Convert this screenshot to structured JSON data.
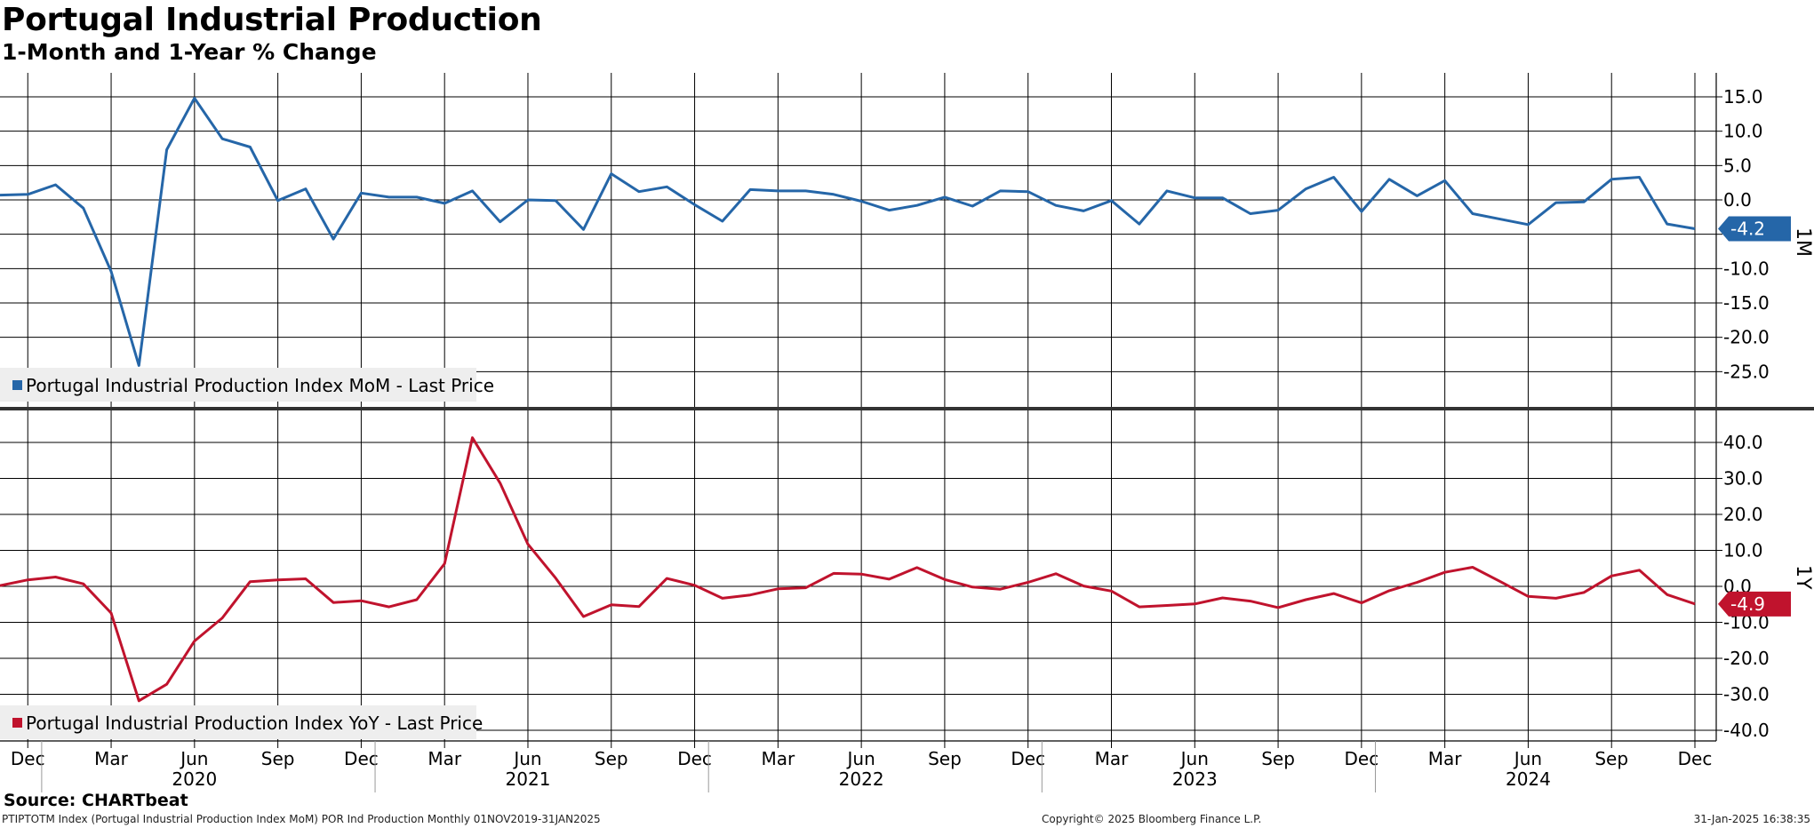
{
  "header": {
    "title": "Portugal Industrial Production",
    "subtitle": "1-Month and 1-Year % Change"
  },
  "footer": {
    "source": "Source: CHARTbeat",
    "ticker_info": "PTIPTOTM Index (Portugal Industrial Production Index MoM) POR Ind Production  Monthly 01NOV2019-31JAN2025",
    "copyright": "Copyright© 2025 Bloomberg Finance L.P.",
    "timestamp": "31-Jan-2025 16:38:35"
  },
  "colors": {
    "mom": "#2566a8",
    "yoy": "#c0132d",
    "grid": "#000000",
    "legend_bg": "#eeeeee"
  },
  "chart_data": [
    {
      "type": "line",
      "panel_label": "1M",
      "legend": "Portugal Industrial Production Index MoM - Last Price",
      "last_value_label": "-4.2",
      "ylim": [
        -30,
        19
      ],
      "y_ticks": [
        15,
        10,
        5,
        0,
        -5,
        -10,
        -15,
        -20,
        -25
      ],
      "y_tick_labels": [
        "15.0",
        "10.0",
        "5.0",
        "0.0",
        "-5.0",
        "-10.0",
        "-15.0",
        "-20.0",
        "-25.0"
      ],
      "grid": true,
      "series": [
        {
          "name": "Portugal Industrial Production Index MoM - Last Price",
          "x": [
            "2019-11",
            "2019-12",
            "2020-01",
            "2020-02",
            "2020-03",
            "2020-04",
            "2020-05",
            "2020-06",
            "2020-07",
            "2020-08",
            "2020-09",
            "2020-10",
            "2020-11",
            "2020-12",
            "2021-01",
            "2021-02",
            "2021-03",
            "2021-04",
            "2021-05",
            "2021-06",
            "2021-07",
            "2021-08",
            "2021-09",
            "2021-10",
            "2021-11",
            "2021-12",
            "2022-01",
            "2022-02",
            "2022-03",
            "2022-04",
            "2022-05",
            "2022-06",
            "2022-07",
            "2022-08",
            "2022-09",
            "2022-10",
            "2022-11",
            "2022-12",
            "2023-01",
            "2023-02",
            "2023-03",
            "2023-04",
            "2023-05",
            "2023-06",
            "2023-07",
            "2023-08",
            "2023-09",
            "2023-10",
            "2023-11",
            "2023-12",
            "2024-01",
            "2024-02",
            "2024-03",
            "2024-04",
            "2024-05",
            "2024-06",
            "2024-07",
            "2024-08",
            "2024-09",
            "2024-10",
            "2024-11",
            "2024-12"
          ],
          "values": [
            0.7,
            0.8,
            2.2,
            -1.2,
            -10.4,
            -24.1,
            7.3,
            14.8,
            8.9,
            7.7,
            -0.1,
            1.6,
            -5.7,
            1.0,
            0.4,
            0.4,
            -0.5,
            1.3,
            -3.2,
            0.0,
            -0.1,
            -4.3,
            3.8,
            1.2,
            1.9,
            -0.7,
            -3.1,
            1.5,
            1.3,
            1.3,
            0.8,
            -0.2,
            -1.5,
            -0.8,
            0.4,
            -0.9,
            1.3,
            1.2,
            -0.8,
            -1.6,
            -0.1,
            -3.5,
            1.3,
            0.3,
            0.3,
            -2.0,
            -1.5,
            1.6,
            3.3,
            -1.7,
            3.0,
            0.6,
            2.8,
            -2.0,
            -2.8,
            -3.6,
            -0.4,
            -0.3,
            3.0,
            3.3,
            -3.5,
            -4.2
          ]
        }
      ]
    },
    {
      "type": "line",
      "panel_label": "1Y",
      "legend": "Portugal Industrial Production Index YoY - Last Price",
      "last_value_label": "-4.9",
      "ylim": [
        -44,
        47
      ],
      "y_ticks": [
        40,
        30,
        20,
        10,
        0,
        -10,
        -20,
        -30,
        -40
      ],
      "y_tick_labels": [
        "40.0",
        "30.0",
        "20.0",
        "10.0",
        "0.0",
        "-10.0",
        "-20.0",
        "-30.0",
        "-40.0"
      ],
      "grid": true,
      "series": [
        {
          "name": "Portugal Industrial Production Index YoY - Last Price",
          "x": [
            "2019-11",
            "2019-12",
            "2020-01",
            "2020-02",
            "2020-03",
            "2020-04",
            "2020-05",
            "2020-06",
            "2020-07",
            "2020-08",
            "2020-09",
            "2020-10",
            "2020-11",
            "2020-12",
            "2021-01",
            "2021-02",
            "2021-03",
            "2021-04",
            "2021-05",
            "2021-06",
            "2021-07",
            "2021-08",
            "2021-09",
            "2021-10",
            "2021-11",
            "2021-12",
            "2022-01",
            "2022-02",
            "2022-03",
            "2022-04",
            "2022-05",
            "2022-06",
            "2022-07",
            "2022-08",
            "2022-09",
            "2022-10",
            "2022-11",
            "2022-12",
            "2023-01",
            "2023-02",
            "2023-03",
            "2023-04",
            "2023-05",
            "2023-06",
            "2023-07",
            "2023-08",
            "2023-09",
            "2023-10",
            "2023-11",
            "2023-12",
            "2024-01",
            "2024-02",
            "2024-03",
            "2024-04",
            "2024-05",
            "2024-06",
            "2024-07",
            "2024-08",
            "2024-09",
            "2024-10",
            "2024-11",
            "2024-12"
          ],
          "values": [
            0.2,
            1.8,
            2.6,
            0.7,
            -7.4,
            -31.8,
            -27.2,
            -15.2,
            -8.8,
            1.3,
            1.8,
            2.1,
            -4.5,
            -4.0,
            -5.7,
            -3.7,
            6.3,
            41.3,
            28.7,
            11.7,
            2.3,
            -8.4,
            -5.1,
            -5.6,
            2.2,
            0.3,
            -3.3,
            -2.4,
            -0.7,
            -0.4,
            3.6,
            3.4,
            2.0,
            5.2,
            1.9,
            -0.2,
            -0.8,
            1.1,
            3.5,
            0.1,
            -1.3,
            -5.7,
            -5.3,
            -4.9,
            -3.2,
            -4.1,
            -5.9,
            -3.7,
            -2.0,
            -4.6,
            -1.2,
            1.1,
            3.9,
            5.3,
            1.3,
            -2.8,
            -3.3,
            -1.7,
            2.9,
            4.5,
            -2.3,
            -4.9
          ]
        }
      ]
    }
  ],
  "x_axis": {
    "month_ticks": [
      {
        "x": "2019-12",
        "label": "Dec"
      },
      {
        "x": "2020-03",
        "label": "Mar"
      },
      {
        "x": "2020-06",
        "label": "Jun"
      },
      {
        "x": "2020-09",
        "label": "Sep"
      },
      {
        "x": "2020-12",
        "label": "Dec"
      },
      {
        "x": "2021-03",
        "label": "Mar"
      },
      {
        "x": "2021-06",
        "label": "Jun"
      },
      {
        "x": "2021-09",
        "label": "Sep"
      },
      {
        "x": "2021-12",
        "label": "Dec"
      },
      {
        "x": "2022-03",
        "label": "Mar"
      },
      {
        "x": "2022-06",
        "label": "Jun"
      },
      {
        "x": "2022-09",
        "label": "Sep"
      },
      {
        "x": "2022-12",
        "label": "Dec"
      },
      {
        "x": "2023-03",
        "label": "Mar"
      },
      {
        "x": "2023-06",
        "label": "Jun"
      },
      {
        "x": "2023-09",
        "label": "Sep"
      },
      {
        "x": "2023-12",
        "label": "Dec"
      },
      {
        "x": "2024-03",
        "label": "Mar"
      },
      {
        "x": "2024-06",
        "label": "Jun"
      },
      {
        "x": "2024-09",
        "label": "Sep"
      },
      {
        "x": "2024-12",
        "label": "Dec"
      }
    ],
    "year_labels": [
      {
        "x": "2020-06",
        "label": "2020"
      },
      {
        "x": "2021-06",
        "label": "2021"
      },
      {
        "x": "2022-06",
        "label": "2022"
      },
      {
        "x": "2023-06",
        "label": "2023"
      },
      {
        "x": "2024-06",
        "label": "2024"
      }
    ]
  }
}
